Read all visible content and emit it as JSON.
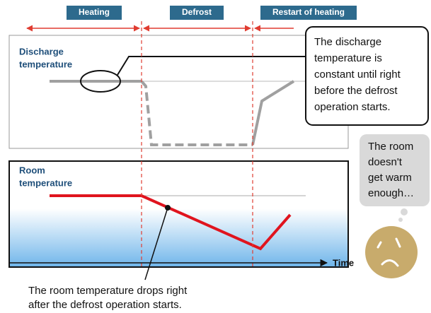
{
  "phases": [
    "Heating",
    "Defrost",
    "Restart of heating"
  ],
  "discharge_label": [
    "Discharge",
    "temperature"
  ],
  "room_label": [
    "Room",
    "temperature"
  ],
  "callout": [
    "The discharge",
    "temperature is",
    "constant until right",
    "before the defrost",
    "operation starts."
  ],
  "thought": [
    "The room",
    "doesn't",
    "get warm",
    "enough…"
  ],
  "time_label": "Time",
  "note": [
    "The room temperature drops right",
    "after the defrost operation starts."
  ]
}
